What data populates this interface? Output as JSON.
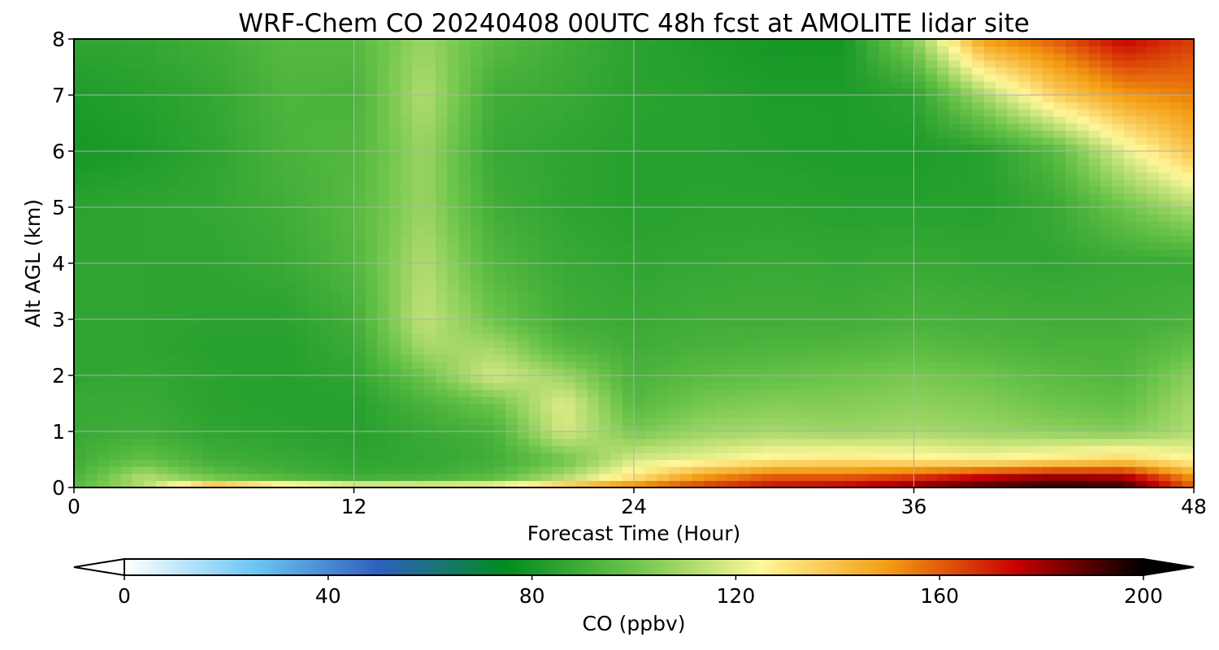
{
  "chart_data": {
    "type": "heatmap",
    "title": "WRF-Chem CO  20240408 00UTC 48h fcst at AMOLITE lidar site",
    "xlabel": "Forecast Time (Hour)",
    "ylabel": "Alt AGL (km)",
    "xlim": [
      0,
      48
    ],
    "ylim": [
      0,
      8
    ],
    "x_ticks": [
      "0",
      "12",
      "24",
      "36",
      "48"
    ],
    "y_ticks": [
      "0",
      "1",
      "2",
      "3",
      "4",
      "5",
      "6",
      "7",
      "8"
    ],
    "grid": true,
    "colorbar": {
      "label": "CO  (ppbv)",
      "range": [
        0,
        200
      ],
      "ticks": [
        "0",
        "40",
        "80",
        "120",
        "160",
        "200"
      ],
      "extend": "both",
      "orientation": "horizontal",
      "colors": [
        "#ffffff",
        "#6ec8f4",
        "#2e5fbf",
        "#008c1e",
        "#6cc44a",
        "#fff799",
        "#f39c12",
        "#c80000",
        "#000000"
      ]
    },
    "x_hours": [
      0,
      3,
      6,
      9,
      12,
      15,
      18,
      21,
      24,
      27,
      30,
      33,
      36,
      39,
      42,
      45,
      48
    ],
    "z_km": [
      0,
      0.2,
      0.5,
      1,
      1.5,
      2,
      2.5,
      3,
      4,
      5,
      6,
      7,
      8
    ],
    "values_ppbv": [
      [
        96,
        112,
        155,
        140,
        130,
        128,
        130,
        145,
        158,
        168,
        175,
        178,
        185,
        192,
        198,
        196,
        160
      ],
      [
        92,
        112,
        98,
        92,
        88,
        90,
        95,
        110,
        130,
        150,
        160,
        160,
        165,
        175,
        180,
        178,
        150
      ],
      [
        90,
        98,
        90,
        88,
        86,
        87,
        90,
        100,
        118,
        122,
        128,
        130,
        128,
        125,
        130,
        135,
        125
      ],
      [
        88,
        90,
        86,
        85,
        84,
        88,
        92,
        118,
        102,
        108,
        110,
        108,
        110,
        108,
        106,
        104,
        112
      ],
      [
        88,
        88,
        85,
        84,
        84,
        92,
        100,
        120,
        95,
        102,
        104,
        104,
        106,
        104,
        100,
        98,
        110
      ],
      [
        86,
        87,
        85,
        84,
        86,
        100,
        118,
        108,
        92,
        96,
        98,
        100,
        102,
        100,
        96,
        94,
        106
      ],
      [
        86,
        86,
        84,
        84,
        88,
        110,
        110,
        95,
        90,
        92,
        93,
        94,
        96,
        94,
        92,
        92,
        98
      ],
      [
        86,
        86,
        85,
        85,
        90,
        115,
        100,
        90,
        88,
        90,
        90,
        90,
        92,
        91,
        90,
        90,
        92
      ],
      [
        86,
        86,
        86,
        88,
        94,
        112,
        94,
        88,
        86,
        87,
        88,
        87,
        88,
        87,
        86,
        88,
        88
      ],
      [
        85,
        86,
        87,
        90,
        95,
        108,
        90,
        86,
        84,
        85,
        85,
        84,
        84,
        84,
        88,
        100,
        112
      ],
      [
        80,
        82,
        86,
        92,
        94,
        108,
        88,
        86,
        84,
        84,
        83,
        82,
        82,
        84,
        95,
        120,
        140
      ],
      [
        82,
        84,
        87,
        93,
        92,
        112,
        90,
        88,
        85,
        84,
        82,
        82,
        85,
        110,
        135,
        150,
        155
      ],
      [
        86,
        87,
        90,
        95,
        95,
        108,
        96,
        90,
        85,
        82,
        80,
        80,
        105,
        150,
        160,
        175,
        165
      ]
    ]
  }
}
